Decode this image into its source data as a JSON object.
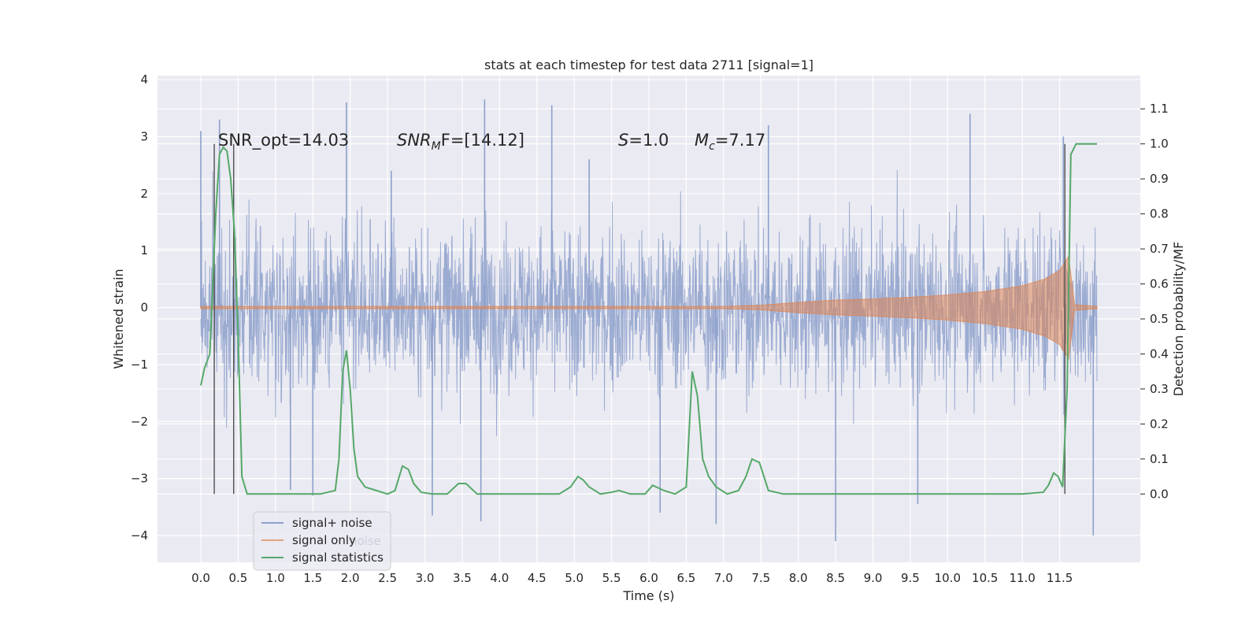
{
  "chart_data": {
    "type": "line",
    "title": "stats at each timestep for test data 2711 [signal=1]",
    "xlabel": "Time (s)",
    "ylabel": "Whitened strain",
    "ylabel_right": "Detection probability/MF",
    "xlim": [
      -0.58,
      12.58
    ],
    "ylim": [
      -4.47,
      4.07
    ],
    "ylim_right": [
      -0.195,
      1.195
    ],
    "x_ticks": [
      "0.0",
      "0.5",
      "1.0",
      "1.5",
      "2.0",
      "2.5",
      "3.0",
      "3.5",
      "4.0",
      "4.5",
      "5.0",
      "5.5",
      "6.0",
      "6.5",
      "7.0",
      "7.5",
      "8.0",
      "8.5",
      "9.0",
      "9.5",
      "10.0",
      "10.5",
      "11.0",
      "11.5"
    ],
    "y_ticks": [
      "−4",
      "−3",
      "−2",
      "−1",
      "0",
      "1",
      "2",
      "3",
      "4"
    ],
    "y_ticks_right": [
      "0.0",
      "0.1",
      "0.2",
      "0.3",
      "0.4",
      "0.5",
      "0.6",
      "0.7",
      "0.8",
      "0.9",
      "1.0",
      "1.1"
    ],
    "grid": true,
    "legend": {
      "placement": "lower left",
      "entries": [
        {
          "label": "signal+ noise",
          "color": "#8da0cb"
        },
        {
          "label": "signal only",
          "color": "#dd8452"
        },
        {
          "label": "signal statistics",
          "color": "#55a868"
        }
      ],
      "ghost_text": "noise"
    },
    "annotations": {
      "snr_opt": "SNR_opt=14.03",
      "snr_mf_sym": "SNR",
      "snr_mf_sub": "M",
      "snr_mf_rest": "F=[14.12]",
      "s_sym": "S",
      "s_rest": "=1.0",
      "mc_sym": "M",
      "mc_sub": "c",
      "mc_rest": "=7.17"
    },
    "vlines_x": [
      0.18,
      0.44,
      11.57
    ],
    "series": [
      {
        "name": "signal+ noise",
        "color": "#8da0cb",
        "x_range": [
          0.0,
          12.0
        ],
        "typical_envelope": [
          -1.5,
          1.6
        ],
        "extremes": [
          {
            "x": 0.0,
            "y": 3.1
          },
          {
            "x": 0.25,
            "y": 3.3
          },
          {
            "x": 1.2,
            "y": -3.2
          },
          {
            "x": 1.5,
            "y": -3.3
          },
          {
            "x": 1.95,
            "y": 3.6
          },
          {
            "x": 2.55,
            "y": 2.4
          },
          {
            "x": 3.8,
            "y": 3.65
          },
          {
            "x": 3.1,
            "y": -3.65
          },
          {
            "x": 3.75,
            "y": -3.75
          },
          {
            "x": 4.7,
            "y": 3.55
          },
          {
            "x": 5.2,
            "y": 2.6
          },
          {
            "x": 6.15,
            "y": -3.6
          },
          {
            "x": 6.9,
            "y": -3.8
          },
          {
            "x": 7.6,
            "y": 3.2
          },
          {
            "x": 8.5,
            "y": -4.1
          },
          {
            "x": 9.6,
            "y": -3.45
          },
          {
            "x": 10.3,
            "y": 3.4
          },
          {
            "x": 11.55,
            "y": 3.0
          },
          {
            "x": 11.95,
            "y": -4.0
          }
        ]
      },
      {
        "name": "signal only",
        "color": "#dd8452",
        "envelope_x": [
          0.0,
          7.0,
          7.5,
          8.0,
          8.5,
          9.0,
          9.5,
          10.0,
          10.5,
          11.0,
          11.3,
          11.5,
          11.62,
          11.7,
          12.0
        ],
        "envelope_y": [
          0.02,
          0.02,
          0.04,
          0.09,
          0.13,
          0.15,
          0.18,
          0.22,
          0.28,
          0.38,
          0.5,
          0.65,
          0.9,
          0.05,
          0.02
        ]
      },
      {
        "name": "signal statistics",
        "color": "#55a868",
        "axis": "right",
        "x": [
          0.0,
          0.05,
          0.12,
          0.2,
          0.25,
          0.3,
          0.35,
          0.4,
          0.45,
          0.5,
          0.55,
          0.62,
          0.7,
          0.8,
          1.0,
          1.3,
          1.6,
          1.8,
          1.85,
          1.9,
          1.95,
          2.0,
          2.05,
          2.1,
          2.2,
          2.35,
          2.5,
          2.6,
          2.7,
          2.78,
          2.85,
          2.95,
          3.1,
          3.3,
          3.45,
          3.55,
          3.7,
          3.9,
          4.2,
          4.8,
          4.95,
          5.05,
          5.12,
          5.2,
          5.35,
          5.5,
          5.6,
          5.75,
          5.95,
          6.05,
          6.2,
          6.35,
          6.5,
          6.58,
          6.65,
          6.72,
          6.8,
          6.9,
          7.05,
          7.2,
          7.3,
          7.38,
          7.48,
          7.6,
          7.8,
          8.3,
          9.0,
          10.0,
          11.0,
          11.28,
          11.35,
          11.42,
          11.48,
          11.54,
          11.6,
          11.65,
          11.72,
          11.8,
          12.0
        ],
        "y": [
          0.31,
          0.36,
          0.4,
          0.8,
          0.97,
          0.99,
          0.98,
          0.9,
          0.75,
          0.45,
          0.05,
          0.0,
          0.0,
          0.0,
          0.0,
          0.0,
          0.0,
          0.01,
          0.1,
          0.35,
          0.41,
          0.3,
          0.13,
          0.05,
          0.02,
          0.01,
          0.0,
          0.01,
          0.08,
          0.07,
          0.03,
          0.005,
          0.0,
          0.0,
          0.03,
          0.03,
          0.0,
          0.0,
          0.0,
          0.0,
          0.02,
          0.05,
          0.04,
          0.02,
          0.0,
          0.005,
          0.01,
          0.0,
          0.0,
          0.025,
          0.01,
          0.0,
          0.02,
          0.35,
          0.28,
          0.1,
          0.05,
          0.02,
          0.0,
          0.01,
          0.05,
          0.1,
          0.09,
          0.01,
          0.0,
          0.0,
          0.0,
          0.0,
          0.0,
          0.005,
          0.025,
          0.06,
          0.05,
          0.02,
          0.3,
          0.97,
          1.0,
          1.0,
          1.0
        ]
      }
    ]
  }
}
